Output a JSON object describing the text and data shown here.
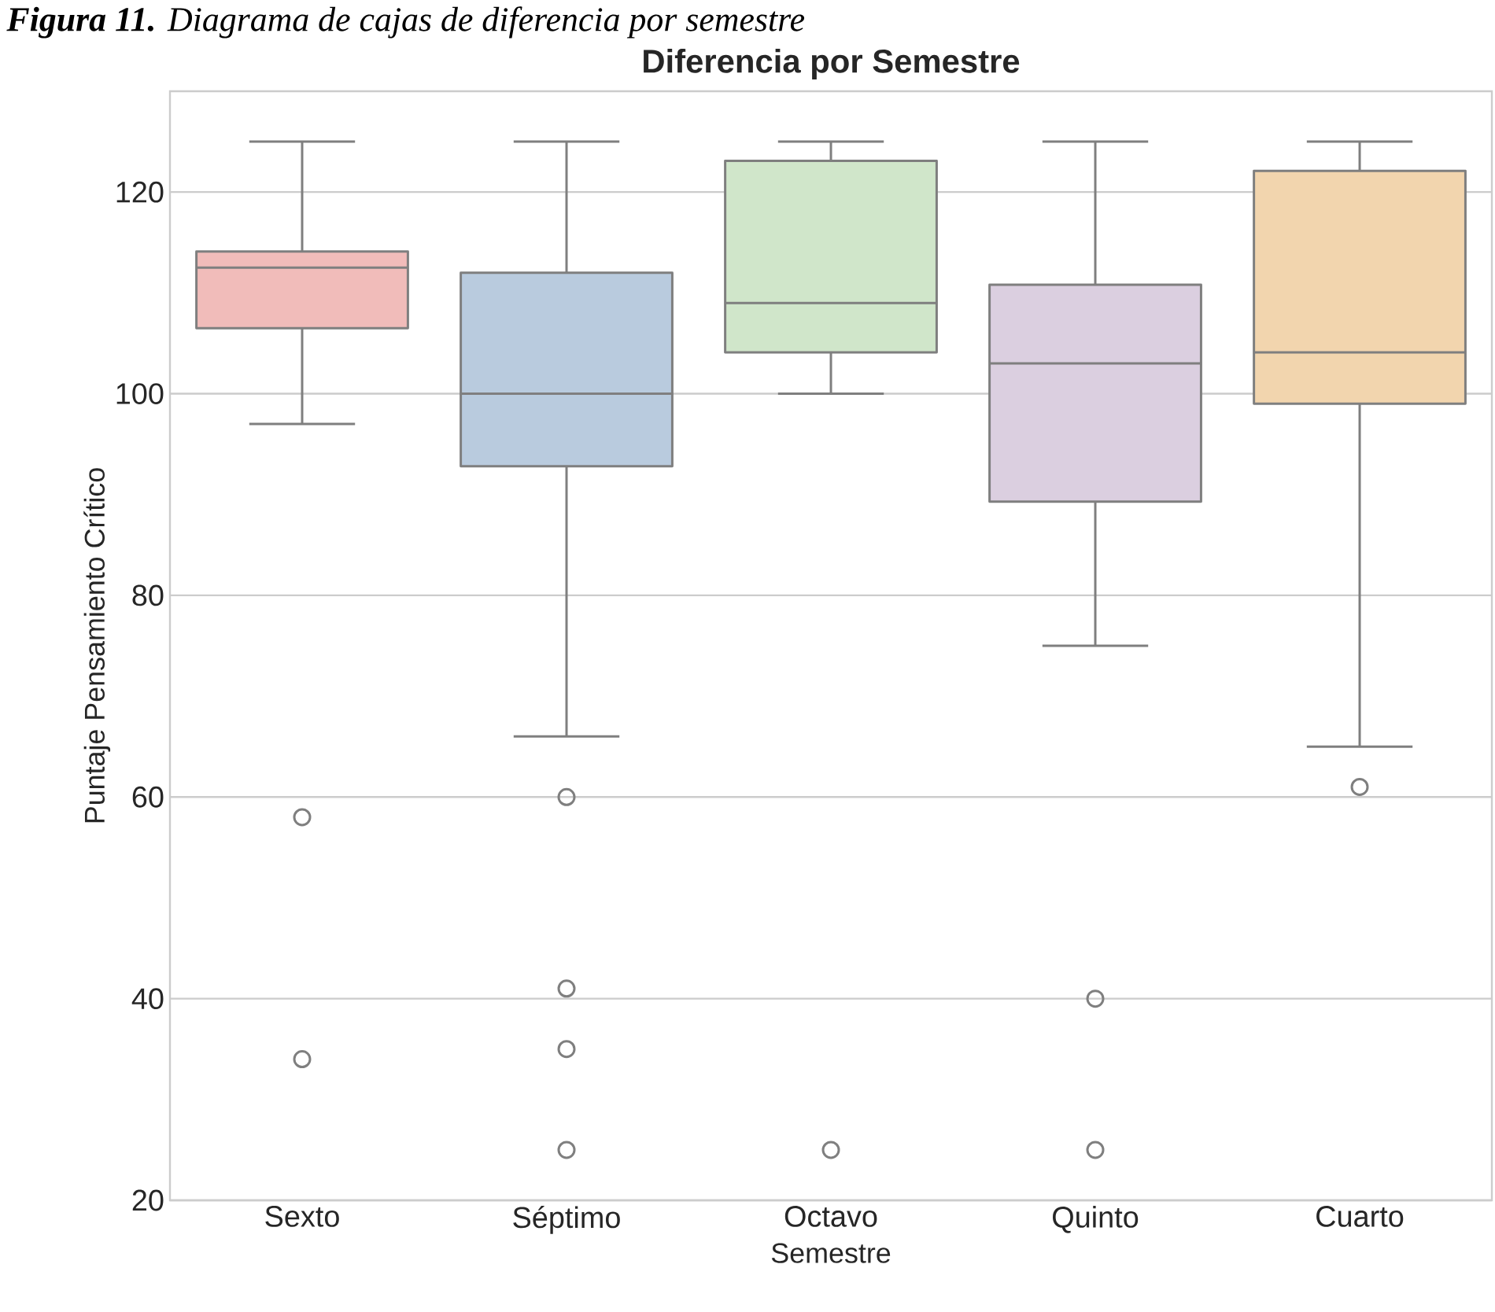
{
  "chart_data": {
    "type": "box",
    "title": "Diferencia por Semestre",
    "xlabel": "Semestre",
    "ylabel": "Puntaje Pensamiento Crítico",
    "annotations": [
      "**Figura 11.** Diagrama de cajas de diferencia por semestre"
    ],
    "categories": [
      "Sexto",
      "Séptimo",
      "Octavo",
      "Quinto",
      "Cuarto"
    ],
    "colors": [
      "#f1bcba",
      "#b9cbde",
      "#d0e6ca",
      "#dbcfe0",
      "#f2d5ae"
    ],
    "boxes": [
      {
        "low": 97,
        "q1": 106.5,
        "median": 112.5,
        "q3": 114.1,
        "high": 125,
        "outliers": [
          58,
          34
        ]
      },
      {
        "low": 66,
        "q1": 92.8,
        "median": 100,
        "q3": 112,
        "high": 125,
        "outliers": [
          60,
          41,
          35,
          25
        ]
      },
      {
        "low": 100,
        "q1": 104.1,
        "median": 109,
        "q3": 123.1,
        "high": 125,
        "outliers": [
          25
        ]
      },
      {
        "low": 75,
        "q1": 89.3,
        "median": 103,
        "q3": 110.8,
        "high": 125,
        "outliers": [
          40,
          25
        ]
      },
      {
        "low": 65,
        "q1": 99,
        "median": 104.1,
        "q3": 122.1,
        "high": 125,
        "outliers": [
          61
        ]
      }
    ],
    "ylim": [
      20,
      130
    ],
    "yticks": [
      20,
      40,
      60,
      80,
      100,
      120
    ],
    "grid": "y",
    "marker": "circle"
  }
}
